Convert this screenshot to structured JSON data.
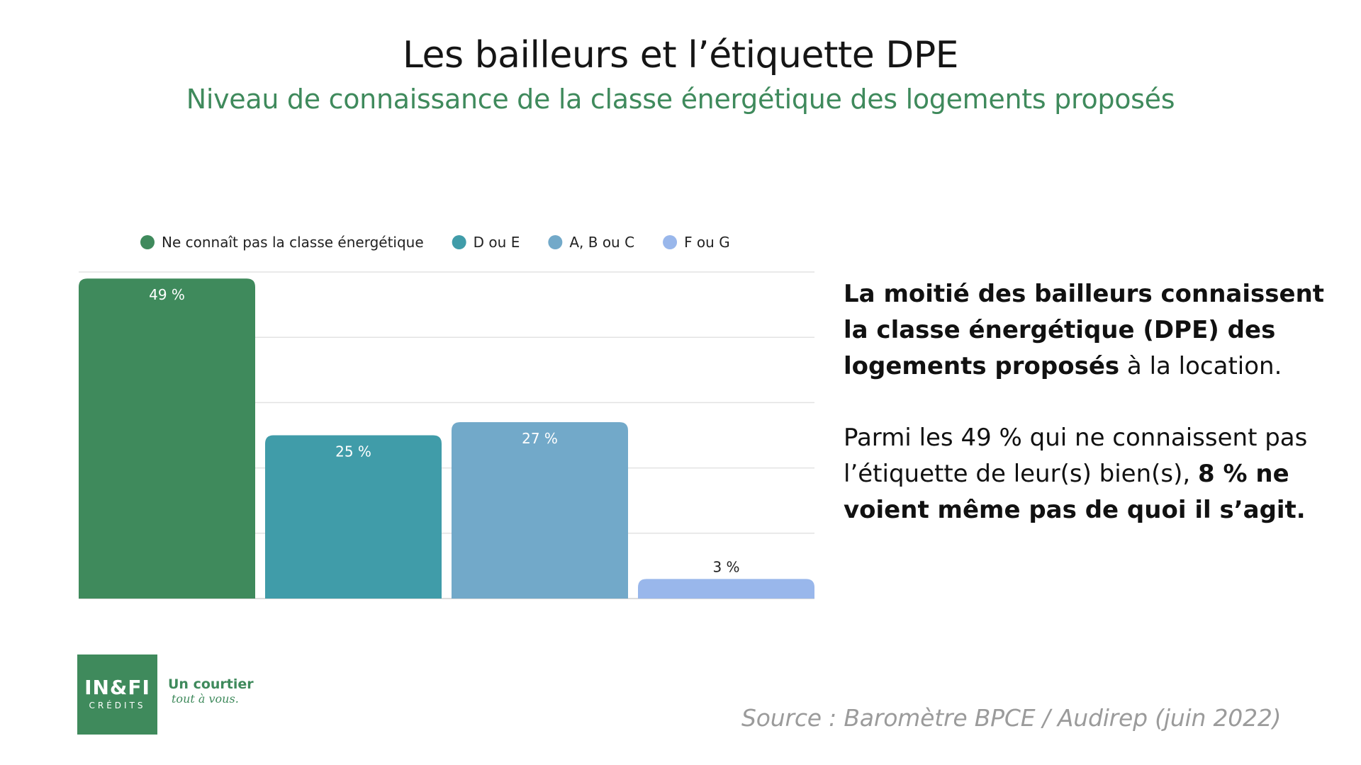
{
  "header": {
    "title": "Les bailleurs et l’étiquette DPE",
    "subtitle": "Niveau de connaissance de la classe énergétique des logements proposés"
  },
  "chart_data": {
    "type": "bar",
    "categories": [
      "Ne connaît pas la classe énergétique",
      "D ou E",
      "A, B ou C",
      "F ou G"
    ],
    "values": [
      49,
      25,
      27,
      3
    ],
    "data_labels": [
      "49 %",
      "25 %",
      "27 %",
      "3 %"
    ],
    "colors": [
      "#3f8a5c",
      "#409ca9",
      "#72a9c9",
      "#99b7eb"
    ],
    "legend_position": "top",
    "ylim": [
      0,
      50
    ],
    "gridlines": [
      0,
      10,
      20,
      30,
      40,
      50
    ],
    "grid": true,
    "title": "",
    "xlabel": "",
    "ylabel": ""
  },
  "commentary": {
    "p1_bold": "La moitié des bailleurs connaissent la classe énergétique (DPE) des logements proposés",
    "p1_rest": " à la location.",
    "p2_start": "Parmi les 49 % qui ne connaissent pas l’étiquette de leur(s) bien(s), ",
    "p2_bold": "8 % ne voient même pas de quoi il s’agit."
  },
  "logo": {
    "main": "IN&FI",
    "sub": "CRÉDITS",
    "tagline_main": "Un courtier",
    "tagline_sub": "tout à vous."
  },
  "source": "Source : Baromètre BPCE / Audirep (juin 2022)"
}
